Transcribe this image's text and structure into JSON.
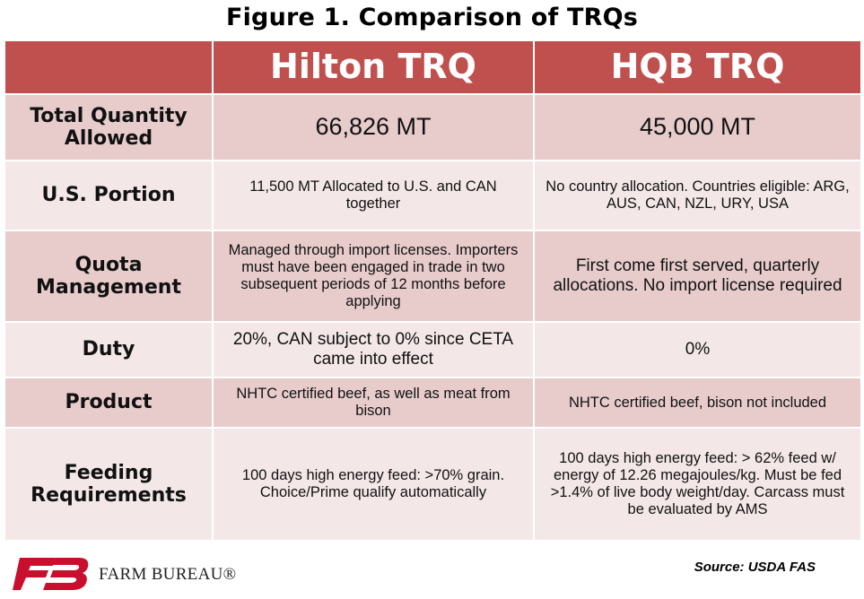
{
  "title": "Figure 1. Comparison of TRQs",
  "columns": [
    "",
    "Hilton TRQ",
    "HQB TRQ"
  ],
  "rows": [
    {
      "label": "Total Quantity Allowed",
      "hilton": "66,826 MT",
      "hqb": "45,000 MT"
    },
    {
      "label": "U.S. Portion",
      "hilton": "11,500 MT Allocated to U.S. and CAN together",
      "hqb": "No country allocation. Countries eligible: ARG, AUS, CAN, NZL, URY, USA"
    },
    {
      "label": "Quota Management",
      "hilton": "Managed through import licenses. Importers must have been engaged in trade in two subsequent periods of 12 months before applying",
      "hqb": "First come first served, quarterly allocations. No import license required"
    },
    {
      "label": "Duty",
      "hilton": "20%, CAN subject to 0% since CETA came into effect",
      "hqb": "0%"
    },
    {
      "label": "Product",
      "hilton": "NHTC certified beef, as well as meat from bison",
      "hqb": "NHTC certified beef, bison not included"
    },
    {
      "label": "Feeding Requirements",
      "hilton": "100 days high energy feed: >70% grain. Choice/Prime qualify automatically",
      "hqb": "100 days high energy feed: > 62% feed w/ energy of 12.26 megajoules/kg. Must be fed >1.4% of live body weight/day. Carcass must be evaluated by AMS"
    }
  ],
  "footer": {
    "logo_text": "FARM BUREAU®",
    "source": "Source: USDA FAS"
  },
  "colors": {
    "header_bg": "#c0504d",
    "row_dark": "#e8cccc",
    "row_light": "#f4e7e7",
    "logo_red": "#c8102e"
  }
}
